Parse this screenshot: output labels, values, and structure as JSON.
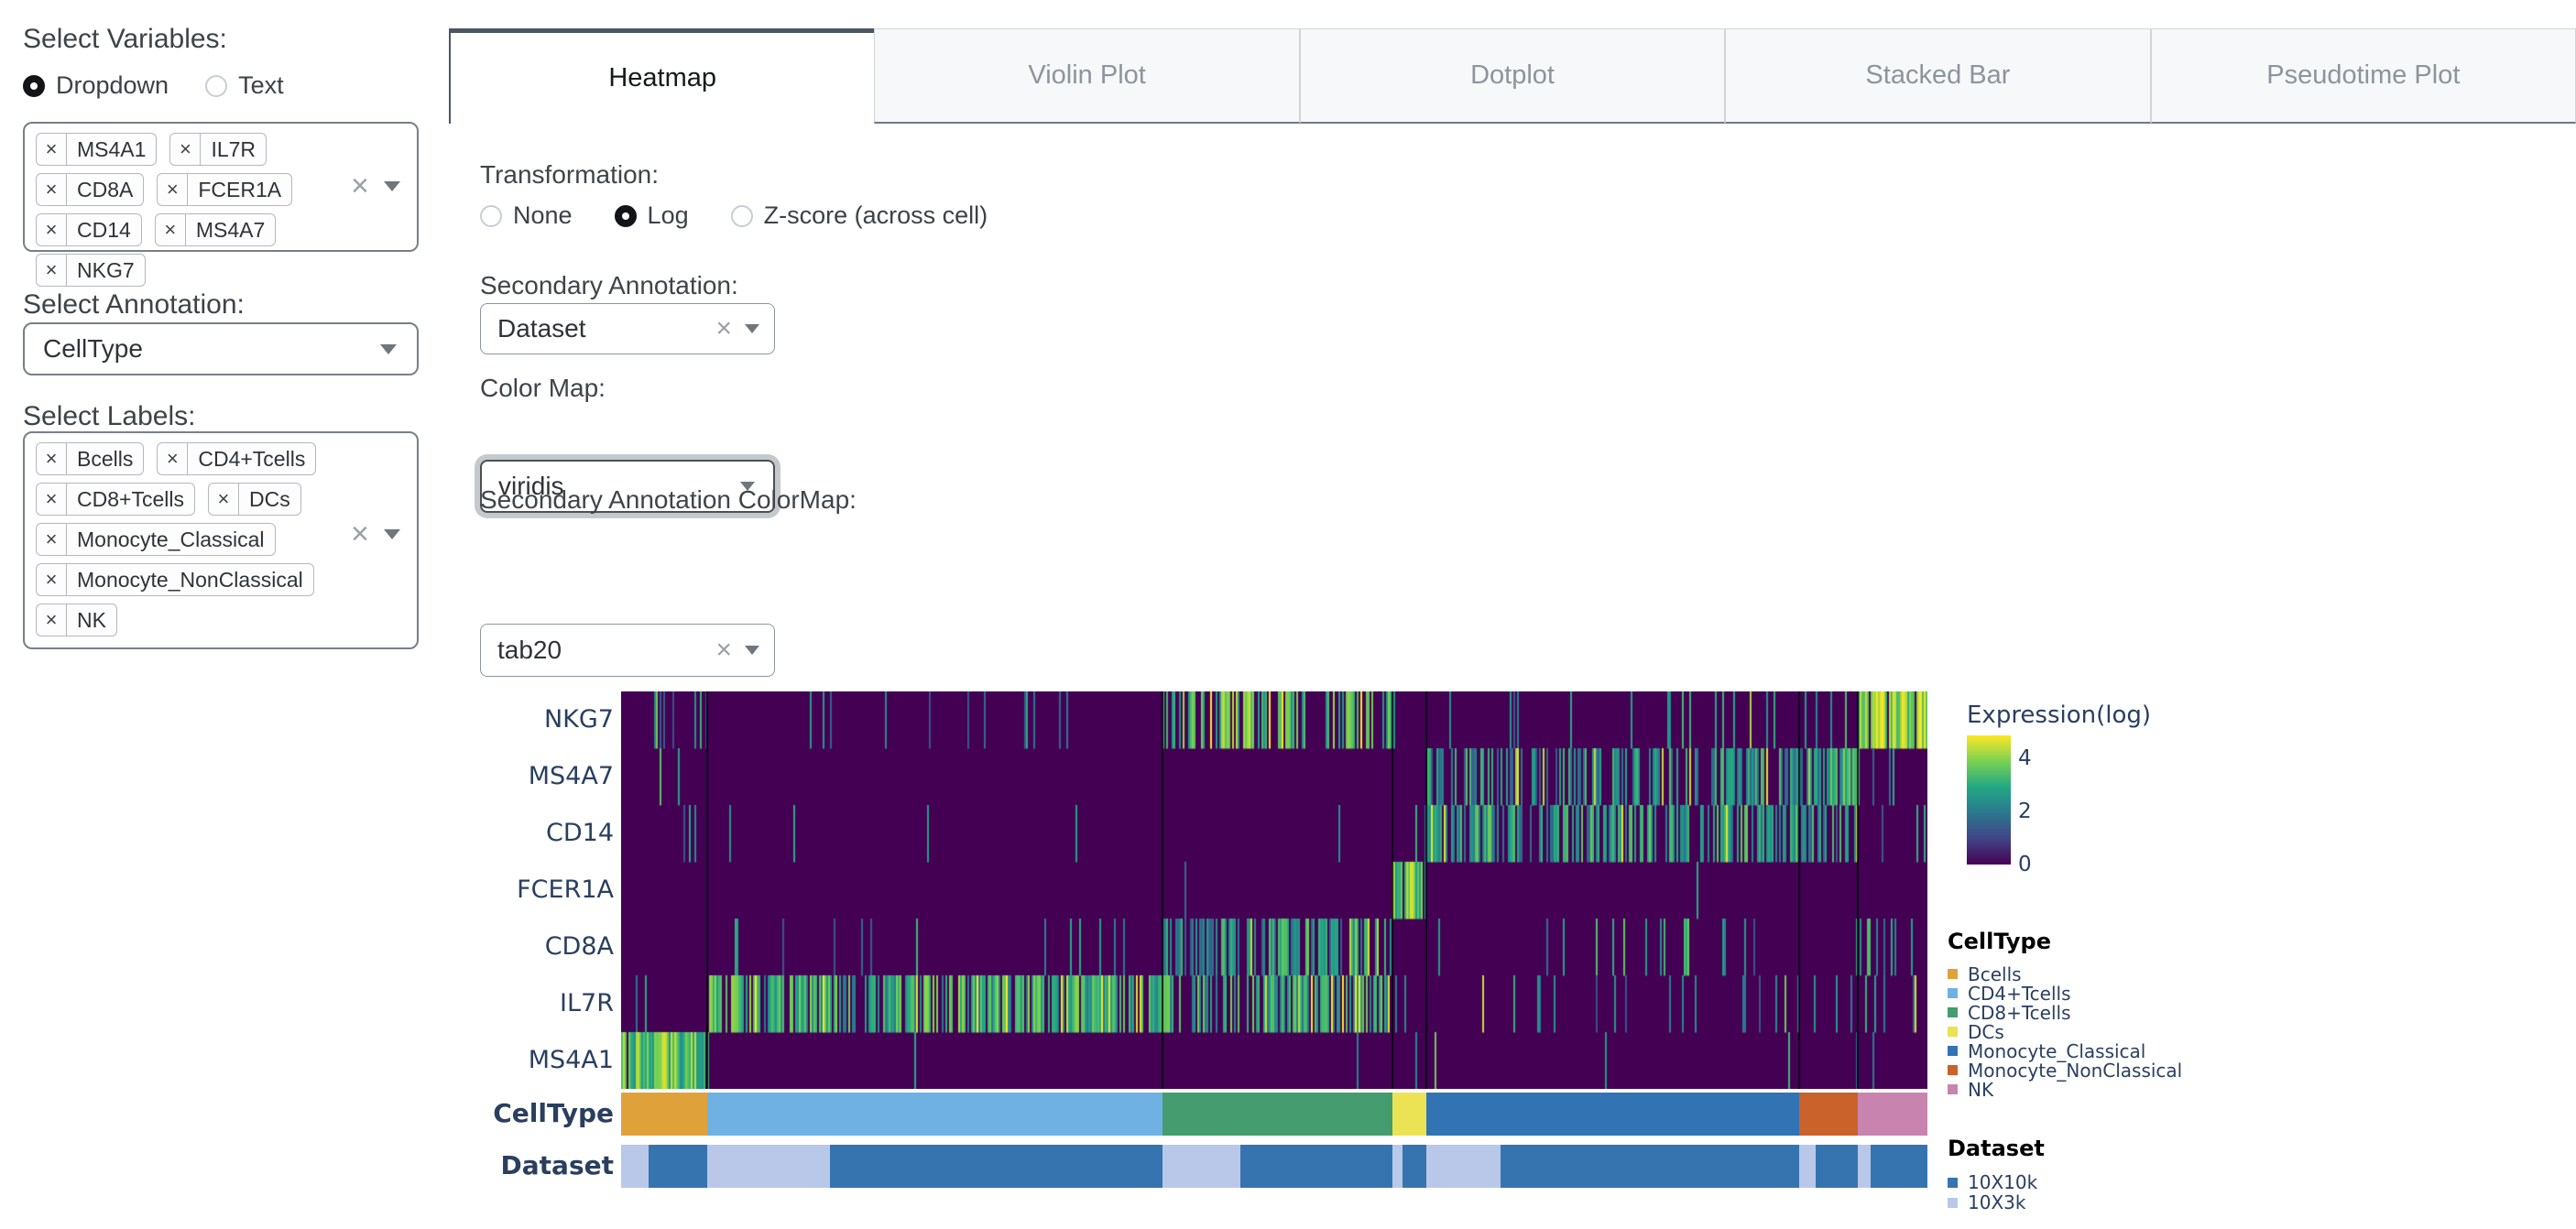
{
  "sidebar": {
    "select_variables_label": "Select Variables:",
    "mode_options": [
      {
        "label": "Dropdown",
        "selected": true
      },
      {
        "label": "Text",
        "selected": false
      }
    ],
    "variables": [
      "MS4A1",
      "IL7R",
      "CD8A",
      "FCER1A",
      "CD14",
      "MS4A7",
      "NKG7"
    ],
    "select_annotation_label": "Select Annotation:",
    "annotation_value": "CellType",
    "select_labels_label": "Select Labels:",
    "labels": [
      "Bcells",
      "CD4+Tcells",
      "CD8+Tcells",
      "DCs",
      "Monocyte_Classical",
      "Monocyte_NonClassical",
      "NK"
    ]
  },
  "tabs": [
    {
      "label": "Heatmap",
      "active": true
    },
    {
      "label": "Violin Plot",
      "active": false
    },
    {
      "label": "Dotplot",
      "active": false
    },
    {
      "label": "Stacked Bar",
      "active": false
    },
    {
      "label": "Pseudotime Plot",
      "active": false
    }
  ],
  "controls": {
    "transformation_label": "Transformation:",
    "transformation_options": [
      {
        "label": "None",
        "selected": false
      },
      {
        "label": "Log",
        "selected": true
      },
      {
        "label": "Z-score (across cell)",
        "selected": false
      }
    ],
    "secondary_annotation_label": "Secondary Annotation:",
    "secondary_annotation_value": "Dataset",
    "color_map_label": "Color Map:",
    "color_map_value": "viridis",
    "secondary_annotation_colormap_label": "Secondary Annotation ColorMap:",
    "secondary_annotation_colormap_value": "tab20"
  },
  "chart_data": {
    "type": "heatmap",
    "genes_top_to_bottom": [
      "NKG7",
      "MS4A7",
      "CD14",
      "FCER1A",
      "CD8A",
      "IL7R",
      "MS4A1"
    ],
    "celltype_row_label": "CellType",
    "dataset_row_label": "Dataset",
    "colorbar": {
      "title": "Expression(log)",
      "ticks": [
        4,
        2,
        0
      ],
      "vmax": 4.85,
      "colormap": "viridis",
      "viridis_stops": [
        "#440154",
        "#414487",
        "#2a788e",
        "#22a884",
        "#7ad151",
        "#fde725"
      ]
    },
    "blocks": [
      {
        "celltype": "Bcells",
        "color": "#dfa23b",
        "width_frac": 0.066,
        "dataset_split": [
          {
            "dataset": "10X3k",
            "frac": 0.32
          },
          {
            "dataset": "10X10k",
            "frac": 0.68
          }
        ]
      },
      {
        "celltype": "CD4+Tcells",
        "color": "#6fb1e3",
        "width_frac": 0.349,
        "dataset_split": [
          {
            "dataset": "10X3k",
            "frac": 0.27
          },
          {
            "dataset": "10X10k",
            "frac": 0.73
          }
        ]
      },
      {
        "celltype": "CD8+Tcells",
        "color": "#459c6e",
        "width_frac": 0.176,
        "dataset_split": [
          {
            "dataset": "10X3k",
            "frac": 0.34
          },
          {
            "dataset": "10X10k",
            "frac": 0.66
          }
        ]
      },
      {
        "celltype": "DCs",
        "color": "#ebe353",
        "width_frac": 0.026,
        "dataset_split": [
          {
            "dataset": "10X3k",
            "frac": 0.3
          },
          {
            "dataset": "10X10k",
            "frac": 0.7
          }
        ]
      },
      {
        "celltype": "Monocyte_Classical",
        "color": "#3273b3",
        "width_frac": 0.286,
        "dataset_split": [
          {
            "dataset": "10X3k",
            "frac": 0.2
          },
          {
            "dataset": "10X10k",
            "frac": 0.8
          }
        ]
      },
      {
        "celltype": "Monocyte_NonClassical",
        "color": "#c9622b",
        "width_frac": 0.045,
        "dataset_split": [
          {
            "dataset": "10X3k",
            "frac": 0.27
          },
          {
            "dataset": "10X10k",
            "frac": 0.73
          }
        ]
      },
      {
        "celltype": "NK",
        "color": "#c884ae",
        "width_frac": 0.053,
        "dataset_split": [
          {
            "dataset": "10X3k",
            "frac": 0.18
          },
          {
            "dataset": "10X10k",
            "frac": 0.82
          }
        ]
      }
    ],
    "dataset_colors": {
      "10X10k": "#3674b0",
      "10X3k": "#b9c8e8"
    },
    "expression": {
      "note": "per gene: stripe density (fraction of expressing cells) and brightness level (0-1 on viridis) for each celltype block, block order matches blocks[]",
      "density": {
        "NKG7": [
          0.12,
          0.07,
          0.5,
          0.08,
          0.07,
          0.18,
          0.96
        ],
        "MS4A7": [
          0.03,
          0.004,
          0.02,
          0.03,
          0.5,
          0.85,
          0.05
        ],
        "CD14": [
          0.04,
          0.02,
          0.04,
          0.1,
          0.6,
          0.45,
          0.08
        ],
        "FCER1A": [
          0.01,
          0.004,
          0.01,
          0.85,
          0.02,
          0.04,
          0.02
        ],
        "CD8A": [
          0.02,
          0.05,
          0.58,
          0.04,
          0.05,
          0.04,
          0.2
        ],
        "IL7R": [
          0.1,
          0.72,
          0.58,
          0.12,
          0.06,
          0.06,
          0.12
        ],
        "MS4A1": [
          0.92,
          0.012,
          0.015,
          0.04,
          0.012,
          0.02,
          0.04
        ]
      },
      "level": {
        "NKG7": [
          0.45,
          0.45,
          0.7,
          0.45,
          0.45,
          0.5,
          0.8
        ],
        "MS4A7": [
          0.45,
          0.4,
          0.4,
          0.4,
          0.5,
          0.55,
          0.45
        ],
        "CD14": [
          0.45,
          0.42,
          0.42,
          0.5,
          0.55,
          0.5,
          0.45
        ],
        "FCER1A": [
          0.45,
          0.45,
          0.45,
          0.72,
          0.45,
          0.45,
          0.45
        ],
        "CD8A": [
          0.45,
          0.45,
          0.5,
          0.45,
          0.45,
          0.45,
          0.5
        ],
        "IL7R": [
          0.45,
          0.62,
          0.58,
          0.45,
          0.45,
          0.45,
          0.5
        ],
        "MS4A1": [
          0.7,
          0.45,
          0.45,
          0.45,
          0.45,
          0.45,
          0.45
        ]
      }
    },
    "legend": {
      "celltype_title": "CellType",
      "celltype_items": [
        {
          "label": "Bcells",
          "color": "#dfa23b"
        },
        {
          "label": "CD4+Tcells",
          "color": "#6fb1e3"
        },
        {
          "label": "CD8+Tcells",
          "color": "#459c6e"
        },
        {
          "label": "DCs",
          "color": "#ebe353"
        },
        {
          "label": "Monocyte_Classical",
          "color": "#3273b3"
        },
        {
          "label": "Monocyte_NonClassical",
          "color": "#c9622b"
        },
        {
          "label": "NK",
          "color": "#c884ae"
        }
      ],
      "dataset_title": "Dataset",
      "dataset_items": [
        {
          "label": "10X10k",
          "color": "#3674b0"
        },
        {
          "label": "10X3k",
          "color": "#b9c8e8"
        }
      ]
    }
  }
}
